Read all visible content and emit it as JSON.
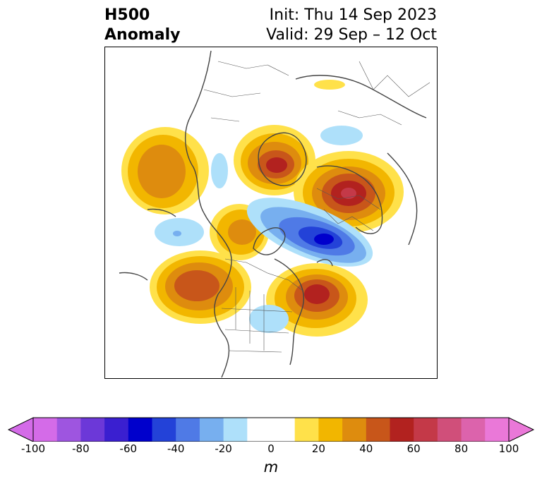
{
  "title": {
    "left_line1": "H500",
    "left_line2": "Anomaly",
    "right_line1": "Init: Thu 14 Sep 2023",
    "right_line2": "Valid: 29 Sep – 12 Oct"
  },
  "colorbar": {
    "unit": "m",
    "ticks": [
      "-100",
      "-80",
      "-60",
      "-40",
      "-20",
      "0",
      "20",
      "40",
      "60",
      "80",
      "100"
    ],
    "bins": [
      "#d46be8",
      "#9e55e0",
      "#6c38d8",
      "#3a1fd0",
      "#0000cc",
      "#2342d8",
      "#4f7ae6",
      "#77afef",
      "#aee0fa",
      "#ffffff",
      "#ffffff",
      "#ffe14a",
      "#f2b600",
      "#de8c0e",
      "#c8561a",
      "#b2221f",
      "#c43948",
      "#d04f7a",
      "#dc63ac",
      "#ea78d8"
    ],
    "min_color": "#d46be8",
    "max_color": "#ea78d8"
  },
  "map_data": {
    "field": "500 hPa geopotential height anomaly (m)",
    "features": [
      {
        "kind": "positive",
        "peak": 45,
        "region": "North Pacific / Gulf of Alaska"
      },
      {
        "kind": "positive",
        "peak": 60,
        "region": "Greenland"
      },
      {
        "kind": "positive",
        "peak": 65,
        "region": "Scandinavia / NW Russia"
      },
      {
        "kind": "positive",
        "peak": 50,
        "region": "NE Pacific off US West Coast"
      },
      {
        "kind": "positive",
        "peak": 60,
        "region": "Northeast US / Atlantic Canada"
      },
      {
        "kind": "negative",
        "peak": -55,
        "region": "Arctic Ocean / Siberian side"
      },
      {
        "kind": "negative",
        "peak": -20,
        "region": "Central US"
      },
      {
        "kind": "negative",
        "peak": -15,
        "region": "Northern Russia"
      },
      {
        "kind": "negative",
        "peak": -15,
        "region": "Bering / Kamchatka"
      }
    ]
  }
}
